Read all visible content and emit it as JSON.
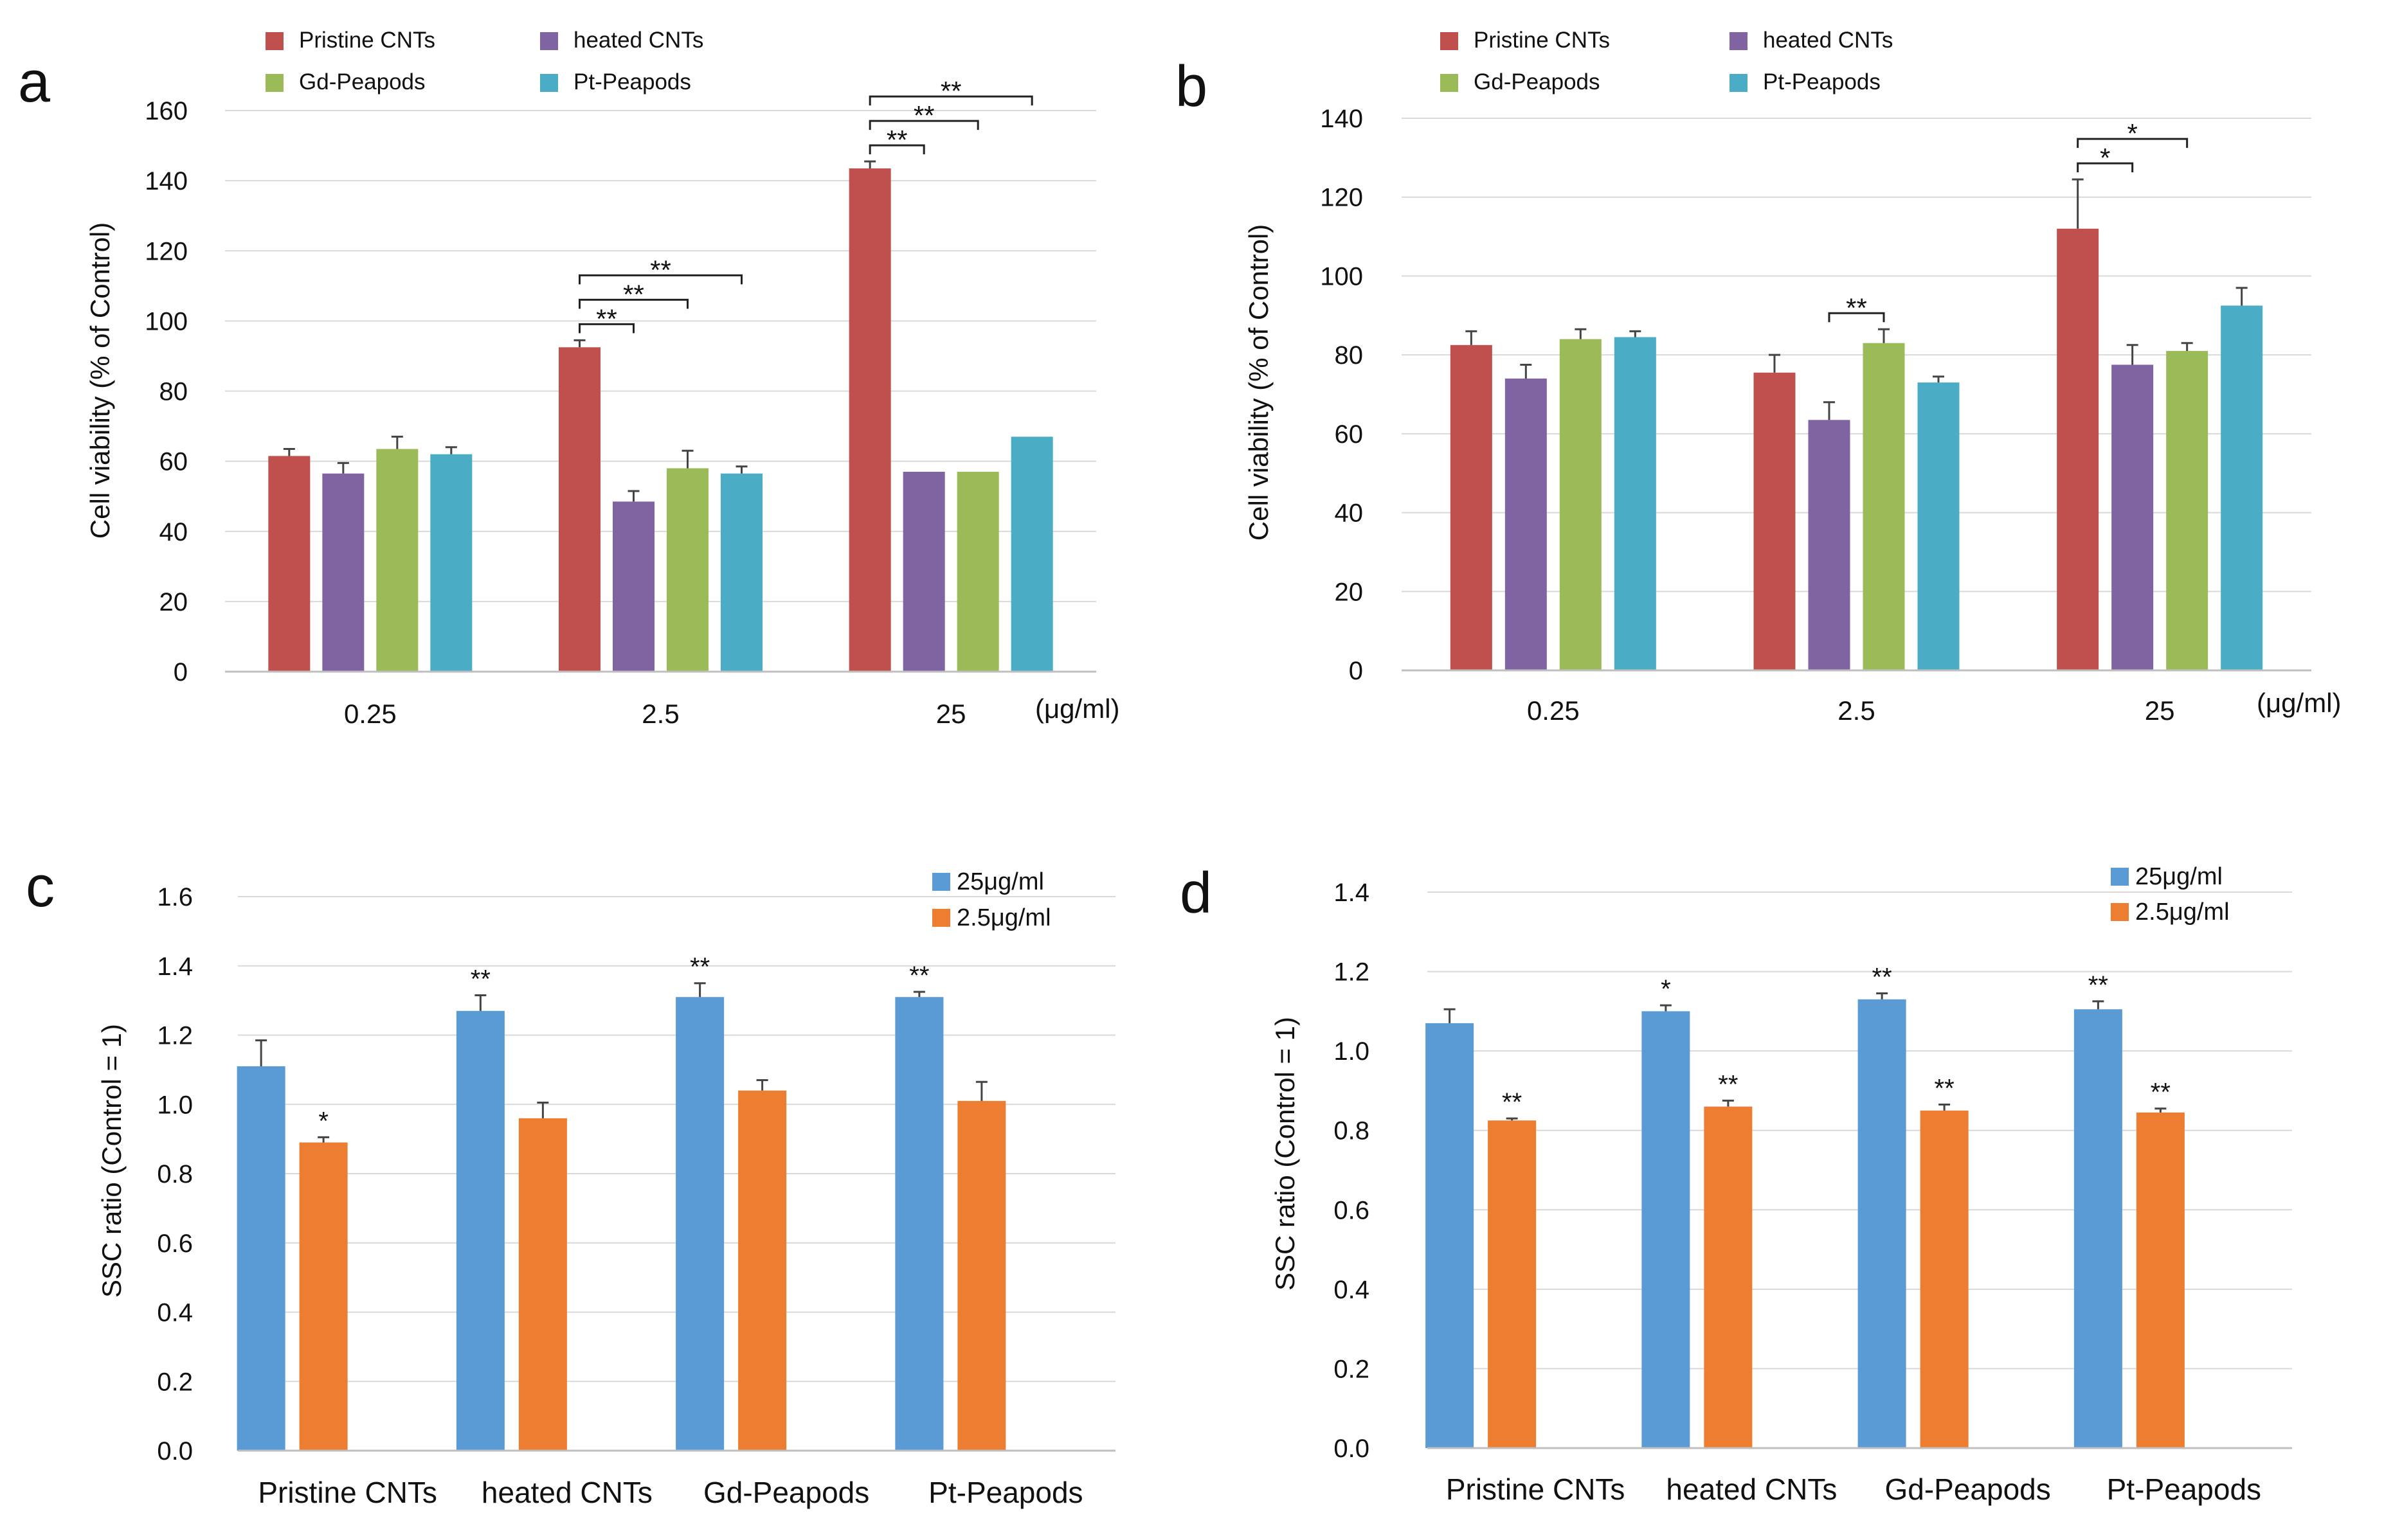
{
  "colors": {
    "pristine": "#c0504d",
    "heated": "#8064a2",
    "gd": "#9bbb59",
    "pt": "#4bacc6",
    "blue": "#5b9bd5",
    "orange": "#ed7d31",
    "grid": "#d9d9d9",
    "axis": "#bfbfbf",
    "text": "#111111",
    "err": "#444444"
  },
  "chart_data": [
    {
      "panel": "a",
      "type": "bar",
      "title": "",
      "xlabel": "",
      "ylabel": "Cell viability (% of Control)",
      "units_label": "(μg/ml)",
      "ylim": [
        0,
        160
      ],
      "yticks": [
        "0",
        "20",
        "40",
        "60",
        "80",
        "100",
        "120",
        "140",
        "160"
      ],
      "grid": true,
      "legend_position": "top",
      "categories": [
        "0.25",
        "2.5",
        "25"
      ],
      "series": [
        {
          "name": "Pristine CNTs",
          "color_key": "pristine",
          "values": [
            61.5,
            92.5,
            143.5
          ],
          "errors": [
            2,
            2,
            2
          ]
        },
        {
          "name": "heated CNTs",
          "color_key": "heated",
          "values": [
            56.5,
            48.5,
            57
          ],
          "errors": [
            3,
            3,
            0
          ]
        },
        {
          "name": "Gd-Peapods",
          "color_key": "gd",
          "values": [
            63.5,
            58,
            57
          ],
          "errors": [
            3.5,
            5,
            0
          ]
        },
        {
          "name": "Pt-Peapods",
          "color_key": "pt",
          "values": [
            62,
            56.5,
            67
          ],
          "errors": [
            2,
            2,
            0
          ]
        }
      ],
      "significance": [
        {
          "category": 1,
          "from": 0,
          "to": 1,
          "label": "**",
          "level": 0
        },
        {
          "category": 1,
          "from": 0,
          "to": 2,
          "label": "**",
          "level": 1
        },
        {
          "category": 1,
          "from": 0,
          "to": 3,
          "label": "**",
          "level": 2
        },
        {
          "category": 2,
          "from": 0,
          "to": 1,
          "label": "**",
          "level": 0
        },
        {
          "category": 2,
          "from": 0,
          "to": 2,
          "label": "**",
          "level": 1
        },
        {
          "category": 2,
          "from": 0,
          "to": 3,
          "label": "**",
          "level": 2
        }
      ]
    },
    {
      "panel": "b",
      "type": "bar",
      "title": "",
      "xlabel": "",
      "ylabel": "Cell viability (% of Control)",
      "units_label": "(μg/ml)",
      "ylim": [
        0,
        140
      ],
      "yticks": [
        "0",
        "20",
        "40",
        "60",
        "80",
        "100",
        "120",
        "140"
      ],
      "grid": true,
      "legend_position": "top",
      "categories": [
        "0.25",
        "2.5",
        "25"
      ],
      "series": [
        {
          "name": "Pristine CNTs",
          "color_key": "pristine",
          "values": [
            82.5,
            75.5,
            112
          ],
          "errors": [
            3.5,
            4.5,
            12.5
          ]
        },
        {
          "name": "heated CNTs",
          "color_key": "heated",
          "values": [
            74,
            63.5,
            77.5
          ],
          "errors": [
            3.5,
            4.5,
            5
          ]
        },
        {
          "name": "Gd-Peapods",
          "color_key": "gd",
          "values": [
            84,
            83,
            81
          ],
          "errors": [
            2.5,
            3.5,
            2
          ]
        },
        {
          "name": "Pt-Peapods",
          "color_key": "pt",
          "values": [
            84.5,
            73,
            92.5
          ],
          "errors": [
            1.5,
            1.5,
            4.5
          ]
        }
      ],
      "significance": [
        {
          "category": 1,
          "from": 1,
          "to": 2,
          "label": "**",
          "level": 0
        },
        {
          "category": 2,
          "from": 0,
          "to": 1,
          "label": "*",
          "level": 0
        },
        {
          "category": 2,
          "from": 0,
          "to": 2,
          "label": "*",
          "level": 1
        }
      ]
    },
    {
      "panel": "c",
      "type": "bar",
      "title": "",
      "xlabel": "",
      "ylabel": "SSC ratio (Control = 1)",
      "ylim": [
        0,
        1.6
      ],
      "yticks": [
        "0.0",
        "0.2",
        "0.4",
        "0.6",
        "0.8",
        "1.0",
        "1.2",
        "1.4",
        "1.6"
      ],
      "grid": true,
      "legend_position": "top-right",
      "categories": [
        "Pristine CNTs",
        "heated CNTs",
        "Gd-Peapods",
        "Pt-Peapods"
      ],
      "series": [
        {
          "name": "25μg/ml",
          "color_key": "blue",
          "values": [
            1.11,
            1.27,
            1.31,
            1.31
          ],
          "errors": [
            0.075,
            0.045,
            0.04,
            0.015
          ],
          "marks": [
            "",
            "**",
            "**",
            "**"
          ]
        },
        {
          "name": "2.5μg/ml",
          "color_key": "orange",
          "values": [
            0.89,
            0.96,
            1.04,
            1.01
          ],
          "errors": [
            0.015,
            0.045,
            0.03,
            0.055
          ],
          "marks": [
            "*",
            "",
            "",
            ""
          ]
        }
      ]
    },
    {
      "panel": "d",
      "type": "bar",
      "title": "",
      "xlabel": "",
      "ylabel": "SSC ratio (Control = 1)",
      "ylim": [
        0,
        1.4
      ],
      "yticks": [
        "0.0",
        "0.2",
        "0.4",
        "0.6",
        "0.8",
        "1.0",
        "1.2",
        "1.4"
      ],
      "grid": true,
      "legend_position": "top-right",
      "categories": [
        "Pristine CNTs",
        "heated CNTs",
        "Gd-Peapods",
        "Pt-Peapods"
      ],
      "series": [
        {
          "name": "25μg/ml",
          "color_key": "blue",
          "values": [
            1.07,
            1.1,
            1.13,
            1.105
          ],
          "errors": [
            0.035,
            0.015,
            0.015,
            0.02
          ],
          "marks": [
            "",
            "*",
            "**",
            "**"
          ]
        },
        {
          "name": "2.5μg/ml",
          "color_key": "orange",
          "values": [
            0.825,
            0.86,
            0.85,
            0.845
          ],
          "errors": [
            0.005,
            0.015,
            0.015,
            0.01
          ],
          "marks": [
            "**",
            "**",
            "**",
            "**"
          ]
        }
      ]
    }
  ]
}
